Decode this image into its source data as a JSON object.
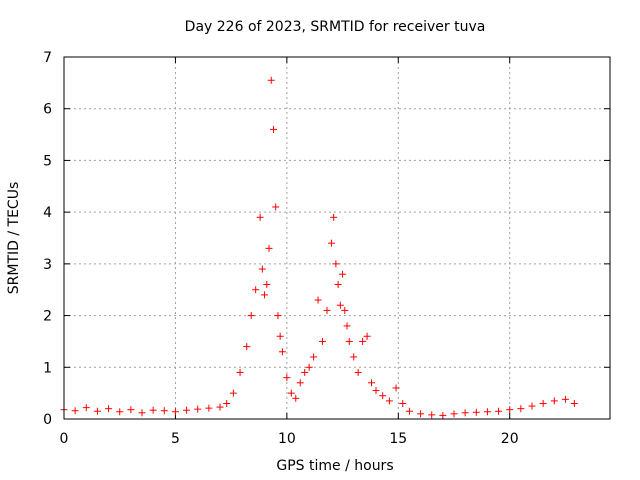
{
  "chart_data": {
    "type": "scatter",
    "title": "Day 226 of 2023, SRMTID for receiver tuva",
    "xlabel": "GPS time / hours",
    "ylabel": "SRMTID / TECUs",
    "xlim": [
      0,
      24.5
    ],
    "ylim": [
      0,
      7
    ],
    "x_ticks": [
      0,
      5,
      10,
      15,
      20
    ],
    "y_ticks": [
      0,
      1,
      2,
      3,
      4,
      5,
      6,
      7
    ],
    "grid": true,
    "marker": "+",
    "marker_color": "#ff0000",
    "series": [
      {
        "name": "SRMTID",
        "x": [
          0.0,
          0.5,
          1.0,
          1.5,
          2.0,
          2.5,
          3.0,
          3.5,
          4.0,
          4.5,
          5.0,
          5.5,
          6.0,
          6.5,
          7.0,
          7.3,
          7.6,
          7.9,
          8.2,
          8.4,
          8.6,
          8.8,
          8.9,
          9.0,
          9.1,
          9.2,
          9.3,
          9.4,
          9.5,
          9.6,
          9.7,
          9.8,
          10.0,
          10.2,
          10.4,
          10.6,
          10.8,
          11.0,
          11.2,
          11.4,
          11.6,
          11.8,
          12.0,
          12.1,
          12.2,
          12.3,
          12.4,
          12.5,
          12.6,
          12.7,
          12.8,
          13.0,
          13.2,
          13.4,
          13.6,
          13.8,
          14.0,
          14.3,
          14.6,
          14.9,
          15.2,
          15.5,
          16.0,
          16.5,
          17.0,
          17.5,
          18.0,
          18.5,
          19.0,
          19.5,
          20.0,
          20.5,
          21.0,
          21.5,
          22.0,
          22.5,
          22.9
        ],
        "y": [
          0.18,
          0.16,
          0.22,
          0.15,
          0.2,
          0.14,
          0.18,
          0.12,
          0.17,
          0.16,
          0.14,
          0.17,
          0.19,
          0.21,
          0.23,
          0.3,
          0.5,
          0.9,
          1.4,
          2.0,
          2.5,
          3.9,
          2.9,
          2.4,
          2.6,
          3.3,
          6.55,
          5.6,
          4.1,
          2.0,
          1.6,
          1.3,
          0.8,
          0.5,
          0.4,
          0.7,
          0.9,
          1.0,
          1.2,
          2.3,
          1.5,
          2.1,
          3.4,
          3.9,
          3.0,
          2.6,
          2.2,
          2.8,
          2.1,
          1.8,
          1.5,
          1.2,
          0.9,
          1.5,
          1.6,
          0.7,
          0.55,
          0.45,
          0.35,
          0.6,
          0.3,
          0.15,
          0.1,
          0.08,
          0.07,
          0.1,
          0.12,
          0.13,
          0.14,
          0.15,
          0.18,
          0.2,
          0.25,
          0.3,
          0.35,
          0.38,
          0.3
        ]
      }
    ]
  }
}
